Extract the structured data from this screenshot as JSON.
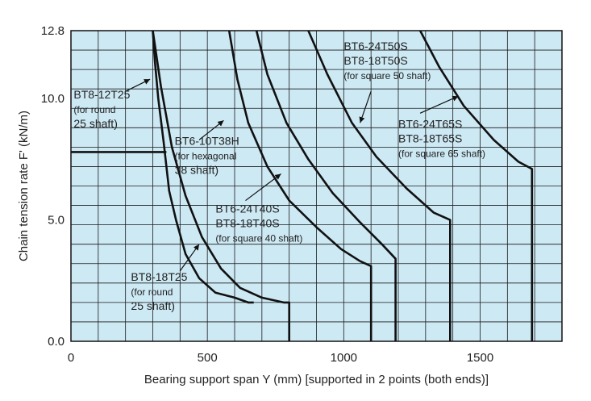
{
  "chart_data": {
    "type": "line",
    "xlabel": "Bearing support span Y (mm) [supported in 2 points (both ends)]",
    "ylabel": "Chain tension rate F' (kN/m)",
    "xlim": [
      0,
      1800
    ],
    "ylim": [
      0,
      12.8
    ],
    "x_ticks": [
      "0",
      "500",
      "1000",
      "1500"
    ],
    "y_ticks": [
      "0.0",
      "5.0",
      "10.0",
      "12.8"
    ],
    "x_tick_values": [
      0,
      500,
      1000,
      1500
    ],
    "y_tick_values": [
      0,
      5,
      10,
      12.8
    ],
    "grid": true,
    "colors": {
      "background": "#cde9f4",
      "grid": "#1a1a1a",
      "line": "#111111",
      "frame": "#111111"
    },
    "series": [
      {
        "name": "BT8-12T25",
        "points": [
          [
            0,
            7.8
          ],
          [
            350,
            7.8
          ]
        ]
      },
      {
        "name": "BT8-12T25",
        "points": [
          [
            300,
            12.8
          ],
          [
            308,
            11.5
          ],
          [
            320,
            10.0
          ],
          [
            340,
            8.2
          ],
          [
            360,
            6.2
          ],
          [
            385,
            5.0
          ],
          [
            420,
            3.6
          ],
          [
            470,
            2.6
          ],
          [
            530,
            2.0
          ],
          [
            600,
            1.8
          ],
          [
            650,
            1.6
          ],
          [
            670,
            1.6
          ]
        ]
      },
      {
        "name": "BT8-18T25",
        "points": [
          [
            300,
            12.8
          ],
          [
            330,
            10.5
          ],
          [
            370,
            8.0
          ],
          [
            420,
            6.0
          ],
          [
            480,
            4.3
          ],
          [
            550,
            3.0
          ],
          [
            620,
            2.2
          ],
          [
            700,
            1.8
          ],
          [
            780,
            1.6
          ],
          [
            800,
            1.6
          ],
          [
            800,
            0
          ]
        ]
      },
      {
        "name": "BT6-10T38H",
        "points": [
          [
            580,
            12.8
          ],
          [
            610,
            10.8
          ],
          [
            650,
            9.0
          ],
          [
            720,
            7.2
          ],
          [
            800,
            5.8
          ],
          [
            900,
            4.7
          ],
          [
            990,
            3.8
          ],
          [
            1060,
            3.3
          ],
          [
            1100,
            3.1
          ],
          [
            1100,
            0
          ]
        ]
      },
      {
        "name": "BT6-24T40S / BT8-18T40S",
        "points": [
          [
            680,
            12.8
          ],
          [
            720,
            11.0
          ],
          [
            790,
            9.0
          ],
          [
            870,
            7.5
          ],
          [
            960,
            6.1
          ],
          [
            1060,
            4.9
          ],
          [
            1140,
            4.0
          ],
          [
            1190,
            3.4
          ],
          [
            1190,
            0
          ]
        ]
      },
      {
        "name": "BT6-24T50S / BT8-18T50S",
        "points": [
          [
            870,
            12.8
          ],
          [
            940,
            11.0
          ],
          [
            1030,
            9.0
          ],
          [
            1120,
            7.6
          ],
          [
            1230,
            6.3
          ],
          [
            1330,
            5.3
          ],
          [
            1390,
            5.0
          ],
          [
            1390,
            0
          ]
        ]
      },
      {
        "name": "BT6-24T65S / BT8-18T65S",
        "points": [
          [
            1280,
            12.8
          ],
          [
            1350,
            11.3
          ],
          [
            1440,
            9.7
          ],
          [
            1550,
            8.3
          ],
          [
            1640,
            7.4
          ],
          [
            1690,
            7.1
          ],
          [
            1690,
            0
          ]
        ]
      }
    ],
    "annotations": [
      {
        "lines": [
          "BT8-12T25",
          "(for round",
          "25 shaft)"
        ],
        "x": 10,
        "y": 10.0
      },
      {
        "lines": [
          "BT6-10T38H",
          "(for hexagonal",
          "38 shaft)"
        ],
        "x": 380,
        "y": 8.1
      },
      {
        "lines": [
          "BT6-24T40S",
          "BT8-18T40S",
          "(for square 40 shaft)"
        ],
        "x": 530,
        "y": 5.3
      },
      {
        "lines": [
          "BT6-24T50S",
          "BT8-18T50S",
          "(for square 50 shaft)"
        ],
        "x": 1000,
        "y": 12.0
      },
      {
        "lines": [
          "BT6-24T65S",
          "BT8-18T65S",
          "(for square 65 shaft)"
        ],
        "x": 1200,
        "y": 8.8
      },
      {
        "lines": [
          "BT8-18T25",
          "(for round",
          "25 shaft)"
        ],
        "x": 220,
        "y": 2.5
      }
    ]
  }
}
